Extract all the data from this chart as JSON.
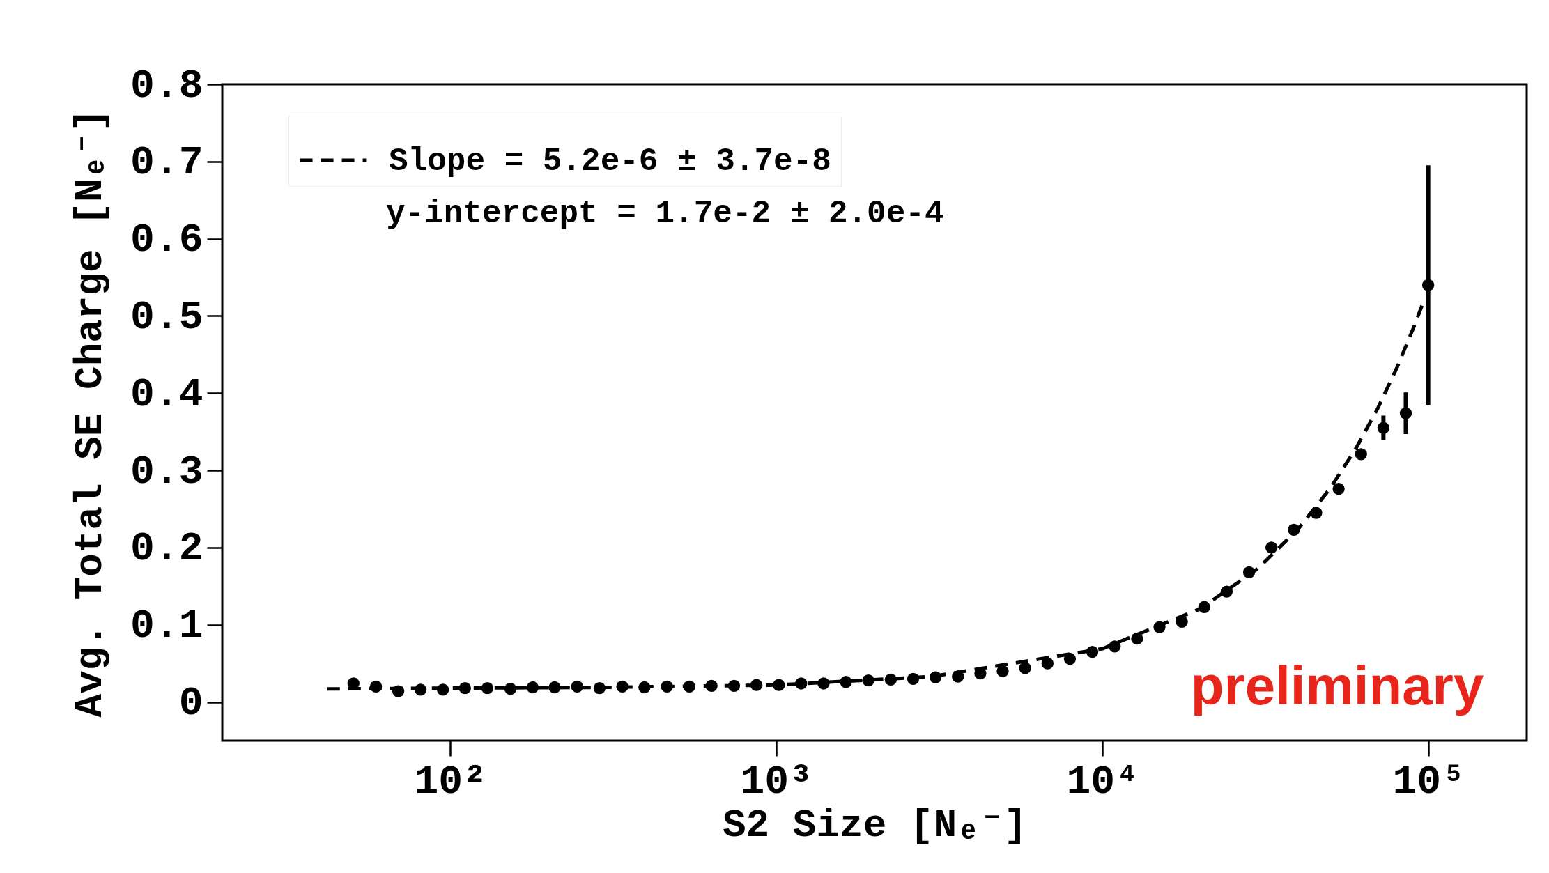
{
  "chart_data": {
    "type": "scatter",
    "xlabel": "S2 Size [Nₑ⁻]",
    "ylabel": "Avg. Total SE Charge [Nₑ⁻]",
    "log": "x",
    "xlim": [
      20,
      200000
    ],
    "ylim": [
      -0.05,
      0.8
    ],
    "xticks": [
      {
        "value": 100,
        "label": "10²"
      },
      {
        "value": 1000,
        "label": "10³"
      },
      {
        "value": 10000,
        "label": "10⁴"
      },
      {
        "value": 100000,
        "label": "10⁵"
      }
    ],
    "yticks": [
      0,
      0.1,
      0.2,
      0.3,
      0.4,
      0.5,
      0.6,
      0.7,
      0.8
    ],
    "marker": "circle",
    "legend": "top left",
    "series": [
      {
        "color": "#000000",
        "x": [
          50.5,
          59.2,
          69.3,
          81.1,
          95,
          111,
          130,
          153,
          179,
          209,
          245,
          287,
          337,
          394,
          462,
          541,
          633,
          742,
          869,
          1018,
          1192,
          1396,
          1635,
          1915,
          2243,
          2628,
          3078,
          3605,
          4223,
          4946,
          5793,
          6786,
          7948,
          9310,
          10905,
          12773,
          14961,
          17524,
          20526,
          24042,
          28161,
          32985,
          38635,
          45253,
          53005,
          62085,
          72720,
          85177,
          99768
        ],
        "values": [
          0.024,
          0.02,
          0.014,
          0.016,
          0.016,
          0.018,
          0.018,
          0.017,
          0.019,
          0.019,
          0.02,
          0.018,
          0.02,
          0.019,
          0.02,
          0.02,
          0.021,
          0.021,
          0.022,
          0.022,
          0.024,
          0.024,
          0.026,
          0.028,
          0.029,
          0.03,
          0.032,
          0.033,
          0.037,
          0.04,
          0.044,
          0.05,
          0.056,
          0.065,
          0.072,
          0.082,
          0.097,
          0.104,
          0.123,
          0.143,
          0.168,
          0.2,
          0.223,
          0.245,
          0.276,
          0.321,
          0.355,
          0.374,
          0.54
        ],
        "errors": [
          null,
          null,
          null,
          null,
          null,
          null,
          null,
          null,
          null,
          null,
          null,
          null,
          null,
          null,
          null,
          null,
          null,
          null,
          null,
          null,
          null,
          null,
          null,
          null,
          null,
          null,
          null,
          null,
          null,
          null,
          null,
          null,
          null,
          null,
          null,
          null,
          null,
          null,
          null,
          null,
          null,
          null,
          null,
          null,
          null,
          null,
          0.016,
          0.027,
          0.155
        ]
      },
      {
        "type": "line",
        "name": "Slope = 5.2e-6 ± 3.7e-8",
        "color": "#000000",
        "line_style": "dashed",
        "marker": "none",
        "x": [
          42,
          100,
          300,
          1000,
          3000,
          10000,
          20000,
          30000,
          40000,
          50000,
          60000,
          70000,
          80000,
          90000,
          96000
        ],
        "values": [
          0.017,
          0.018,
          0.019,
          0.022,
          0.033,
          0.069,
          0.121,
          0.173,
          0.225,
          0.277,
          0.329,
          0.381,
          0.433,
          0.485,
          0.516
        ]
      }
    ],
    "annotations": [
      "y-intercept = 1.7e-2 ± 2.0e-4",
      "preliminary"
    ]
  }
}
